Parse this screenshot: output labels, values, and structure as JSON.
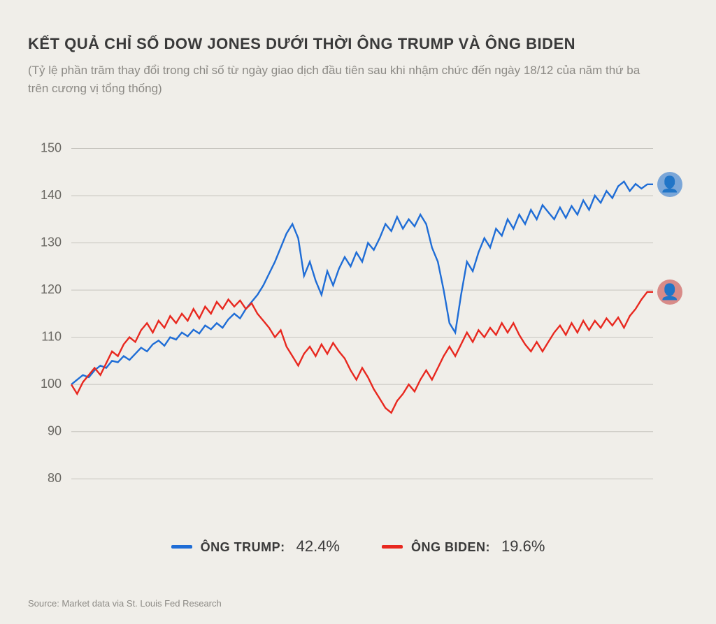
{
  "chart": {
    "type": "line",
    "title": "KẾT QUẢ CHỈ SỐ DOW JONES DƯỚI THỜI ÔNG TRUMP VÀ ÔNG BIDEN",
    "subtitle": "(Tỷ lệ phần trăm thay đổi trong chỉ số từ ngày giao dịch đầu tiên sau khi nhậm chức đến ngày 18/12 của năm thứ ba trên cương vị tổng thống)",
    "background_color": "#f0eee9",
    "grid_color": "#c7c5bf",
    "ytick_label_color": "#6a6863",
    "ytick_fontsize": 18,
    "title_fontsize": 22,
    "subtitle_fontsize": 17,
    "ylim": [
      75,
      152
    ],
    "yticks": [
      80,
      90,
      100,
      110,
      120,
      130,
      140,
      150
    ],
    "xlim": [
      0,
      100
    ],
    "line_width": 2.4,
    "series": [
      {
        "name": "trump",
        "label": "ÔNG TRUMP:",
        "value_label": "42.4%",
        "color": "#1f6dd6",
        "avatar_bg": "#7aa6d8",
        "avatar_glyph": "👤",
        "data": [
          [
            0,
            100
          ],
          [
            1,
            101
          ],
          [
            2,
            102
          ],
          [
            3,
            101.5
          ],
          [
            4,
            103
          ],
          [
            5,
            104
          ],
          [
            6,
            103.5
          ],
          [
            7,
            105
          ],
          [
            8,
            104.7
          ],
          [
            9,
            106
          ],
          [
            10,
            105.2
          ],
          [
            11,
            106.5
          ],
          [
            12,
            107.8
          ],
          [
            13,
            107
          ],
          [
            14,
            108.5
          ],
          [
            15,
            109.3
          ],
          [
            16,
            108.2
          ],
          [
            17,
            110
          ],
          [
            18,
            109.5
          ],
          [
            19,
            111
          ],
          [
            20,
            110.2
          ],
          [
            21,
            111.6
          ],
          [
            22,
            110.8
          ],
          [
            23,
            112.5
          ],
          [
            24,
            111.7
          ],
          [
            25,
            113
          ],
          [
            26,
            112
          ],
          [
            27,
            113.8
          ],
          [
            28,
            115
          ],
          [
            29,
            114
          ],
          [
            30,
            116
          ],
          [
            31,
            117.5
          ],
          [
            32,
            119
          ],
          [
            33,
            121
          ],
          [
            34,
            123.5
          ],
          [
            35,
            126
          ],
          [
            36,
            129
          ],
          [
            37,
            132
          ],
          [
            38,
            134
          ],
          [
            39,
            131
          ],
          [
            40,
            123
          ],
          [
            41,
            126
          ],
          [
            42,
            122
          ],
          [
            43,
            119
          ],
          [
            44,
            124
          ],
          [
            45,
            121
          ],
          [
            46,
            124.5
          ],
          [
            47,
            127
          ],
          [
            48,
            125
          ],
          [
            49,
            128
          ],
          [
            50,
            126
          ],
          [
            51,
            130
          ],
          [
            52,
            128.5
          ],
          [
            53,
            131
          ],
          [
            54,
            134
          ],
          [
            55,
            132.5
          ],
          [
            56,
            135.5
          ],
          [
            57,
            133
          ],
          [
            58,
            135
          ],
          [
            59,
            133.5
          ],
          [
            60,
            136
          ],
          [
            61,
            134
          ],
          [
            62,
            129
          ],
          [
            63,
            126
          ],
          [
            64,
            120
          ],
          [
            65,
            113
          ],
          [
            66,
            111
          ],
          [
            67,
            119
          ],
          [
            68,
            126
          ],
          [
            69,
            124
          ],
          [
            70,
            128
          ],
          [
            71,
            131
          ],
          [
            72,
            129
          ],
          [
            73,
            133
          ],
          [
            74,
            131.5
          ],
          [
            75,
            135
          ],
          [
            76,
            133
          ],
          [
            77,
            136
          ],
          [
            78,
            134
          ],
          [
            79,
            137
          ],
          [
            80,
            135
          ],
          [
            81,
            138
          ],
          [
            82,
            136.5
          ],
          [
            83,
            135
          ],
          [
            84,
            137.5
          ],
          [
            85,
            135.3
          ],
          [
            86,
            137.8
          ],
          [
            87,
            136
          ],
          [
            88,
            139
          ],
          [
            89,
            137
          ],
          [
            90,
            140
          ],
          [
            91,
            138.5
          ],
          [
            92,
            141
          ],
          [
            93,
            139.5
          ],
          [
            94,
            142
          ],
          [
            95,
            143
          ],
          [
            96,
            141
          ],
          [
            97,
            142.5
          ],
          [
            98,
            141.5
          ],
          [
            99,
            142.4
          ],
          [
            100,
            142.4
          ]
        ]
      },
      {
        "name": "biden",
        "label": "ÔNG BIDEN:",
        "value_label": "19.6%",
        "color": "#e8281f",
        "avatar_bg": "#d88b88",
        "avatar_glyph": "👤",
        "data": [
          [
            0,
            100
          ],
          [
            1,
            98
          ],
          [
            2,
            100.5
          ],
          [
            3,
            102
          ],
          [
            4,
            103.5
          ],
          [
            5,
            102
          ],
          [
            6,
            104.5
          ],
          [
            7,
            107
          ],
          [
            8,
            106
          ],
          [
            9,
            108.5
          ],
          [
            10,
            110
          ],
          [
            11,
            109
          ],
          [
            12,
            111.5
          ],
          [
            13,
            113
          ],
          [
            14,
            111
          ],
          [
            15,
            113.5
          ],
          [
            16,
            112
          ],
          [
            17,
            114.5
          ],
          [
            18,
            113
          ],
          [
            19,
            115
          ],
          [
            20,
            113.5
          ],
          [
            21,
            116
          ],
          [
            22,
            114
          ],
          [
            23,
            116.5
          ],
          [
            24,
            115
          ],
          [
            25,
            117.5
          ],
          [
            26,
            116
          ],
          [
            27,
            118
          ],
          [
            28,
            116.5
          ],
          [
            29,
            117.8
          ],
          [
            30,
            116
          ],
          [
            31,
            117.2
          ],
          [
            32,
            115
          ],
          [
            33,
            113.5
          ],
          [
            34,
            112
          ],
          [
            35,
            110
          ],
          [
            36,
            111.5
          ],
          [
            37,
            108
          ],
          [
            38,
            106
          ],
          [
            39,
            104
          ],
          [
            40,
            106.5
          ],
          [
            41,
            108
          ],
          [
            42,
            106
          ],
          [
            43,
            108.5
          ],
          [
            44,
            106.5
          ],
          [
            45,
            108.8
          ],
          [
            46,
            107
          ],
          [
            47,
            105.5
          ],
          [
            48,
            103
          ],
          [
            49,
            101
          ],
          [
            50,
            103.5
          ],
          [
            51,
            101.5
          ],
          [
            52,
            99
          ],
          [
            53,
            97
          ],
          [
            54,
            95
          ],
          [
            55,
            94
          ],
          [
            56,
            96.5
          ],
          [
            57,
            98
          ],
          [
            58,
            100
          ],
          [
            59,
            98.5
          ],
          [
            60,
            101
          ],
          [
            61,
            103
          ],
          [
            62,
            101
          ],
          [
            63,
            103.5
          ],
          [
            64,
            106
          ],
          [
            65,
            108
          ],
          [
            66,
            106
          ],
          [
            67,
            108.5
          ],
          [
            68,
            111
          ],
          [
            69,
            109
          ],
          [
            70,
            111.5
          ],
          [
            71,
            110
          ],
          [
            72,
            112
          ],
          [
            73,
            110.5
          ],
          [
            74,
            113
          ],
          [
            75,
            111
          ],
          [
            76,
            113
          ],
          [
            77,
            110.5
          ],
          [
            78,
            108.5
          ],
          [
            79,
            107
          ],
          [
            80,
            109
          ],
          [
            81,
            107
          ],
          [
            82,
            109
          ],
          [
            83,
            111
          ],
          [
            84,
            112.5
          ],
          [
            85,
            110.5
          ],
          [
            86,
            113
          ],
          [
            87,
            111
          ],
          [
            88,
            113.5
          ],
          [
            89,
            111.5
          ],
          [
            90,
            113.5
          ],
          [
            91,
            112
          ],
          [
            92,
            114
          ],
          [
            93,
            112.5
          ],
          [
            94,
            114.2
          ],
          [
            95,
            112
          ],
          [
            96,
            114.5
          ],
          [
            97,
            116
          ],
          [
            98,
            118
          ],
          [
            99,
            119.6
          ],
          [
            100,
            119.6
          ]
        ]
      }
    ],
    "legend": {
      "swatch_width": 30,
      "swatch_height": 5,
      "label_fontsize": 18,
      "value_fontsize": 22
    },
    "source": "Source: Market data via St. Louis Fed Research"
  }
}
